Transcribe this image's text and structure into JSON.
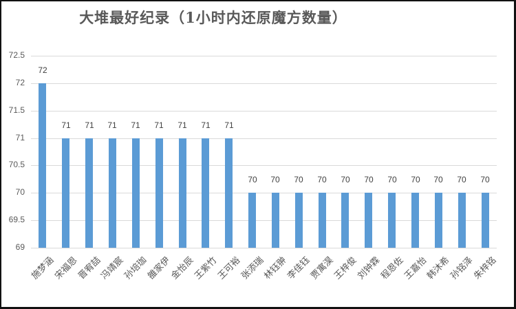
{
  "chart_data": {
    "type": "bar",
    "title": "大堆最好纪录（1小时内还原魔方数量）",
    "xlabel": "",
    "ylabel": "",
    "ylim": [
      69,
      72.5
    ],
    "yticks": [
      "69",
      "69.5",
      "70",
      "70.5",
      "71",
      "71.5",
      "72",
      "72.5"
    ],
    "grid": true,
    "legend": null,
    "bar_color": "#5b9bd5",
    "categories": [
      "施梦涵",
      "宋福恩",
      "晋宥喆",
      "冯靖宸",
      "孙培珈",
      "雒家伊",
      "金怡辰",
      "王紫竹",
      "王可裕",
      "张添瑞",
      "林钰翀",
      "李佳钰",
      "贾寓淏",
      "王梓俊",
      "刘钟霖",
      "程恩佐",
      "王嘉怡",
      "韩沐希",
      "孙铭泽",
      "朱梓铭"
    ],
    "values": [
      72,
      71,
      71,
      71,
      71,
      71,
      71,
      71,
      71,
      70,
      70,
      70,
      70,
      70,
      70,
      70,
      70,
      70,
      70,
      70
    ],
    "data_labels": [
      "72",
      "71",
      "71",
      "71",
      "71",
      "71",
      "71",
      "71",
      "71",
      "70",
      "70",
      "70",
      "70",
      "70",
      "70",
      "70",
      "70",
      "70",
      "70",
      "70"
    ]
  }
}
